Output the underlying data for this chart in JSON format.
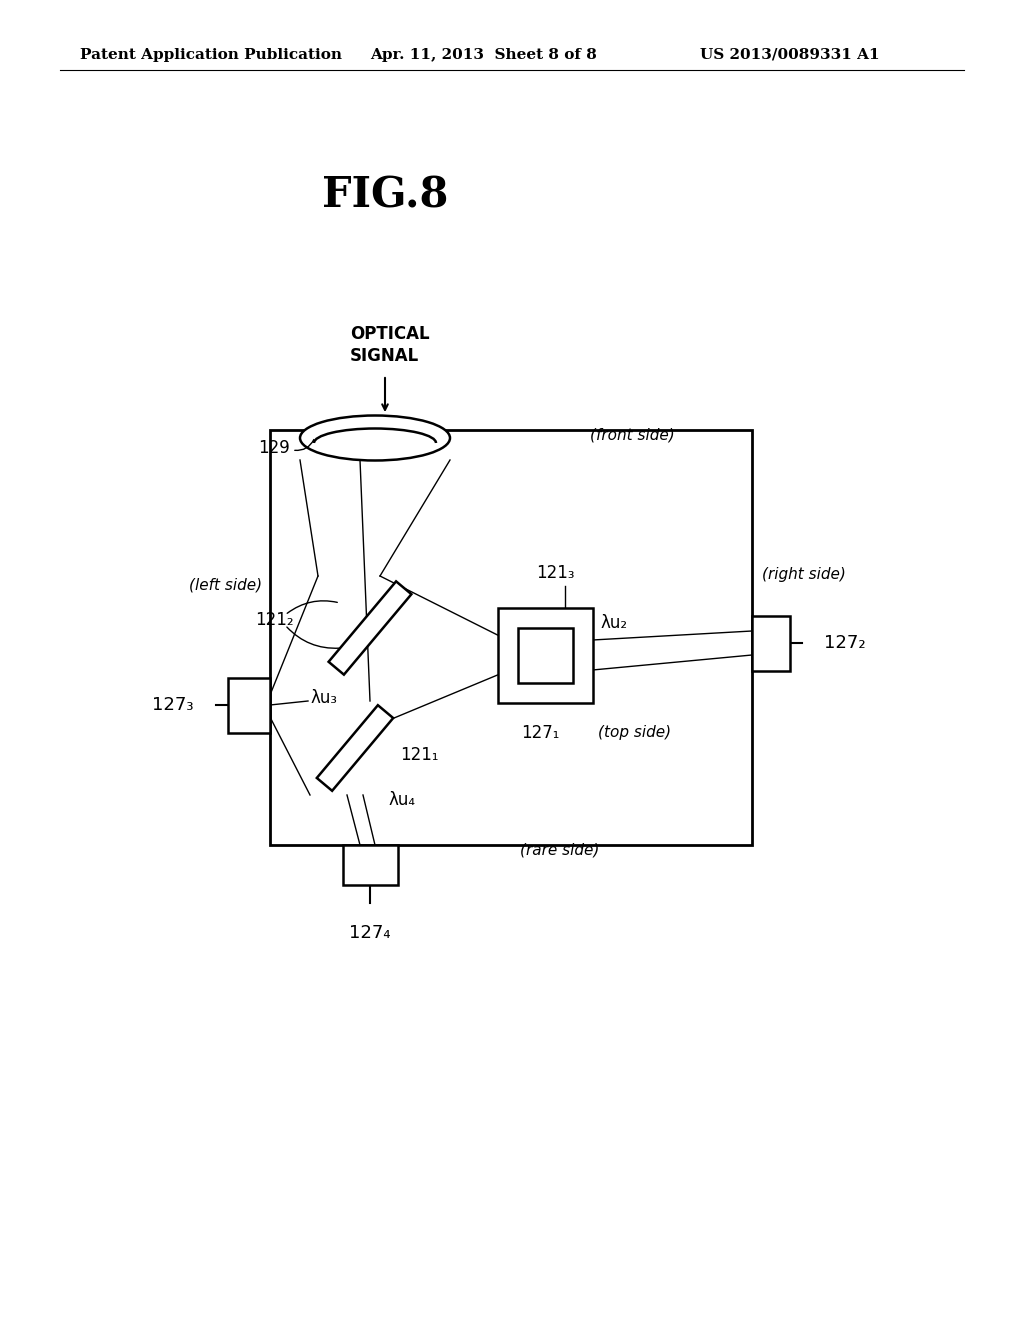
{
  "bg_color": "#ffffff",
  "header_left": "Patent Application Publication",
  "header_mid": "Apr. 11, 2013  Sheet 8 of 8",
  "header_right": "US 2013/0089331 A1",
  "figure_title": "FIG.8",
  "optical_signal_label": "OPTICAL\nSIGNAL",
  "label_129": "129",
  "label_1211": "121₁",
  "label_1212": "121₂",
  "label_1213": "121₃",
  "label_1271": "127₁",
  "label_1272": "127₂",
  "label_1273": "127₃",
  "label_1274": "127₄",
  "label_lu2": "λu₂",
  "label_lu3": "λu₃",
  "label_lu4": "λu₄",
  "label_front": "(front side)",
  "label_rear": "(rare side)",
  "label_left": "(left side)",
  "label_right": "(right side)",
  "label_top": "(top side)"
}
